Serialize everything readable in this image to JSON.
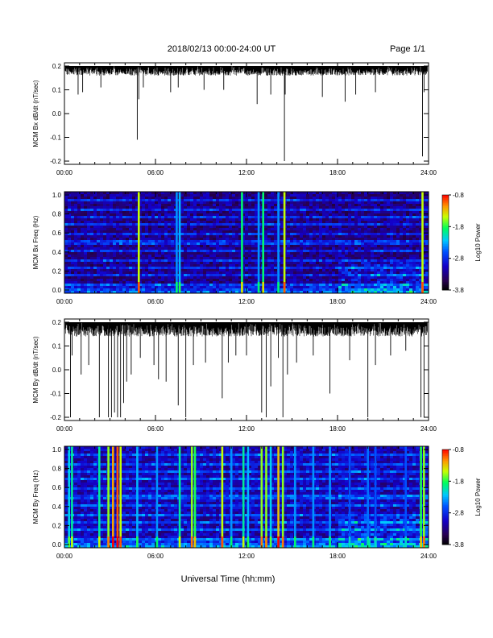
{
  "header": {
    "title": "2018/02/13  00:00-24:00 UT",
    "page": "Page 1/1"
  },
  "footer": {
    "xlabel": "Universal Time (hh:mm)"
  },
  "chart_data": [
    {
      "type": "line",
      "ylabel": "MCM Bx dB/dt (nT/sec)",
      "xlabel": "",
      "x_ticks": [
        "00:00",
        "06:00",
        "12:00",
        "18:00",
        "24:00"
      ],
      "y_ticks": [
        "0.2",
        "0.1",
        "0.0",
        "-0.1",
        "-0.2"
      ],
      "xlim": [
        0,
        24
      ],
      "ylim": [
        -0.2,
        0.2
      ],
      "baseline_top": 0.2,
      "noise_floor": 0.16,
      "spikes": [
        {
          "x": 0.9,
          "y": 0.08
        },
        {
          "x": 1.2,
          "y": 0.09
        },
        {
          "x": 2.4,
          "y": 0.11
        },
        {
          "x": 4.8,
          "y": -0.11
        },
        {
          "x": 4.9,
          "y": 0.06
        },
        {
          "x": 5.2,
          "y": 0.11
        },
        {
          "x": 7.0,
          "y": 0.09
        },
        {
          "x": 7.5,
          "y": 0.11
        },
        {
          "x": 9.2,
          "y": 0.1
        },
        {
          "x": 10.5,
          "y": 0.1
        },
        {
          "x": 12.7,
          "y": 0.04
        },
        {
          "x": 13.6,
          "y": 0.08
        },
        {
          "x": 14.5,
          "y": -0.2
        },
        {
          "x": 14.55,
          "y": 0.08
        },
        {
          "x": 17.0,
          "y": 0.07
        },
        {
          "x": 18.5,
          "y": 0.05
        },
        {
          "x": 19.2,
          "y": 0.08
        },
        {
          "x": 20.5,
          "y": 0.09
        },
        {
          "x": 23.6,
          "y": -0.18
        },
        {
          "x": 23.7,
          "y": 0.09
        }
      ]
    },
    {
      "type": "heatmap",
      "ylabel": "MCM Bx Freq (Hz)",
      "x_ticks": [
        "00:00",
        "06:00",
        "12:00",
        "18:00",
        "24:00"
      ],
      "y_ticks": [
        "1.0",
        "0.8",
        "0.6",
        "0.4",
        "0.2",
        "0.0"
      ],
      "xlim": [
        0,
        24
      ],
      "ylim": [
        0,
        1.0
      ],
      "colorbar": {
        "label": "Log10 Power",
        "ticks": [
          "-0.8",
          "-1.8",
          "-2.8",
          "-3.8"
        ],
        "min": -3.8,
        "max": -0.8
      },
      "harmonic_freqs": [
        0.083,
        0.167,
        0.25,
        0.333,
        0.417,
        0.5,
        0.583,
        0.667,
        0.75,
        0.833,
        0.917
      ],
      "events": [
        {
          "x": 4.9,
          "level": -1.5
        },
        {
          "x": 7.4,
          "level": -2.4
        },
        {
          "x": 7.6,
          "level": -2.3
        },
        {
          "x": 11.7,
          "level": -1.9
        },
        {
          "x": 12.8,
          "level": -2.4
        },
        {
          "x": 13.1,
          "level": -1.9
        },
        {
          "x": 14.1,
          "level": -2.4
        },
        {
          "x": 14.5,
          "level": -1.5
        },
        {
          "x": 23.6,
          "level": -1.5
        }
      ]
    },
    {
      "type": "line",
      "ylabel": "MCM By dB/dt (nT/sec)",
      "x_ticks": [
        "00:00",
        "06:00",
        "12:00",
        "18:00",
        "24:00"
      ],
      "y_ticks": [
        "0.2",
        "0.1",
        "0.0",
        "-0.1",
        "-0.2"
      ],
      "xlim": [
        0,
        24
      ],
      "ylim": [
        -0.2,
        0.2
      ],
      "baseline_top": 0.2,
      "noise_floor": 0.14,
      "spikes": [
        {
          "x": 0.4,
          "y": -0.2
        },
        {
          "x": 0.5,
          "y": 0.06
        },
        {
          "x": 1.1,
          "y": -0.02
        },
        {
          "x": 1.6,
          "y": 0.02
        },
        {
          "x": 2.3,
          "y": -0.2
        },
        {
          "x": 2.9,
          "y": -0.2
        },
        {
          "x": 3.1,
          "y": -0.2
        },
        {
          "x": 3.3,
          "y": -0.18
        },
        {
          "x": 3.5,
          "y": -0.2
        },
        {
          "x": 3.7,
          "y": -0.2
        },
        {
          "x": 3.9,
          "y": -0.14
        },
        {
          "x": 4.1,
          "y": -0.05
        },
        {
          "x": 4.4,
          "y": -0.02
        },
        {
          "x": 5.0,
          "y": 0.05
        },
        {
          "x": 5.9,
          "y": 0.02
        },
        {
          "x": 6.2,
          "y": -0.04
        },
        {
          "x": 6.7,
          "y": -0.05
        },
        {
          "x": 7.5,
          "y": -0.15
        },
        {
          "x": 8.0,
          "y": -0.2
        },
        {
          "x": 8.5,
          "y": 0.02
        },
        {
          "x": 9.3,
          "y": 0.03
        },
        {
          "x": 10.4,
          "y": -0.12
        },
        {
          "x": 10.8,
          "y": 0.03
        },
        {
          "x": 11.3,
          "y": 0.06
        },
        {
          "x": 12.0,
          "y": 0.06
        },
        {
          "x": 13.0,
          "y": -0.18
        },
        {
          "x": 13.3,
          "y": -0.2
        },
        {
          "x": 13.6,
          "y": -0.07
        },
        {
          "x": 14.1,
          "y": 0.05
        },
        {
          "x": 14.4,
          "y": -0.2
        },
        {
          "x": 14.7,
          "y": -0.02
        },
        {
          "x": 15.3,
          "y": 0.03
        },
        {
          "x": 16.4,
          "y": 0.06
        },
        {
          "x": 17.5,
          "y": -0.1
        },
        {
          "x": 18.8,
          "y": 0.04
        },
        {
          "x": 20.0,
          "y": -0.2
        },
        {
          "x": 20.5,
          "y": 0.02
        },
        {
          "x": 21.5,
          "y": 0.06
        },
        {
          "x": 22.5,
          "y": 0.08
        },
        {
          "x": 23.5,
          "y": -0.2
        },
        {
          "x": 23.7,
          "y": -0.2
        }
      ]
    },
    {
      "type": "heatmap",
      "ylabel": "MCM By Freq (Hz)",
      "x_ticks": [
        "00:00",
        "06:00",
        "12:00",
        "18:00",
        "24:00"
      ],
      "y_ticks": [
        "1.0",
        "0.8",
        "0.6",
        "0.4",
        "0.2",
        "0.0"
      ],
      "xlim": [
        0,
        24
      ],
      "ylim": [
        0,
        1.0
      ],
      "colorbar": {
        "label": "Log10 Power",
        "ticks": [
          "-0.8",
          "-1.8",
          "-2.8",
          "-3.8"
        ],
        "min": -3.8,
        "max": -0.8
      },
      "harmonic_freqs": [
        0.083,
        0.167,
        0.25,
        0.333,
        0.417,
        0.5,
        0.583,
        0.667,
        0.75,
        0.833,
        0.917
      ],
      "events": [
        {
          "x": 0.3,
          "level": -2.2
        },
        {
          "x": 0.5,
          "level": -2.0
        },
        {
          "x": 2.3,
          "level": -2.0
        },
        {
          "x": 2.9,
          "level": -1.6
        },
        {
          "x": 3.2,
          "level": -1.2
        },
        {
          "x": 3.5,
          "level": -1.0
        },
        {
          "x": 3.7,
          "level": -1.5
        },
        {
          "x": 4.8,
          "level": -2.3
        },
        {
          "x": 6.1,
          "level": -2.4
        },
        {
          "x": 7.6,
          "level": -2.0
        },
        {
          "x": 8.4,
          "level": -1.6
        },
        {
          "x": 8.6,
          "level": -1.8
        },
        {
          "x": 10.4,
          "level": -1.5
        },
        {
          "x": 11.0,
          "level": -2.4
        },
        {
          "x": 11.8,
          "level": -2.0
        },
        {
          "x": 12.1,
          "level": -2.3
        },
        {
          "x": 13.0,
          "level": -1.6
        },
        {
          "x": 13.3,
          "level": -1.6
        },
        {
          "x": 13.6,
          "level": -2.2
        },
        {
          "x": 14.1,
          "level": -1.3
        },
        {
          "x": 14.4,
          "level": -1.6
        },
        {
          "x": 15.2,
          "level": -2.4
        },
        {
          "x": 16.4,
          "level": -2.4
        },
        {
          "x": 17.5,
          "level": -2.4
        },
        {
          "x": 18.8,
          "level": -2.6
        },
        {
          "x": 20.0,
          "level": -2.5
        },
        {
          "x": 20.5,
          "level": -2.6
        },
        {
          "x": 22.5,
          "level": -2.6
        },
        {
          "x": 23.5,
          "level": -1.8
        },
        {
          "x": 23.7,
          "level": -1.6
        }
      ]
    }
  ]
}
